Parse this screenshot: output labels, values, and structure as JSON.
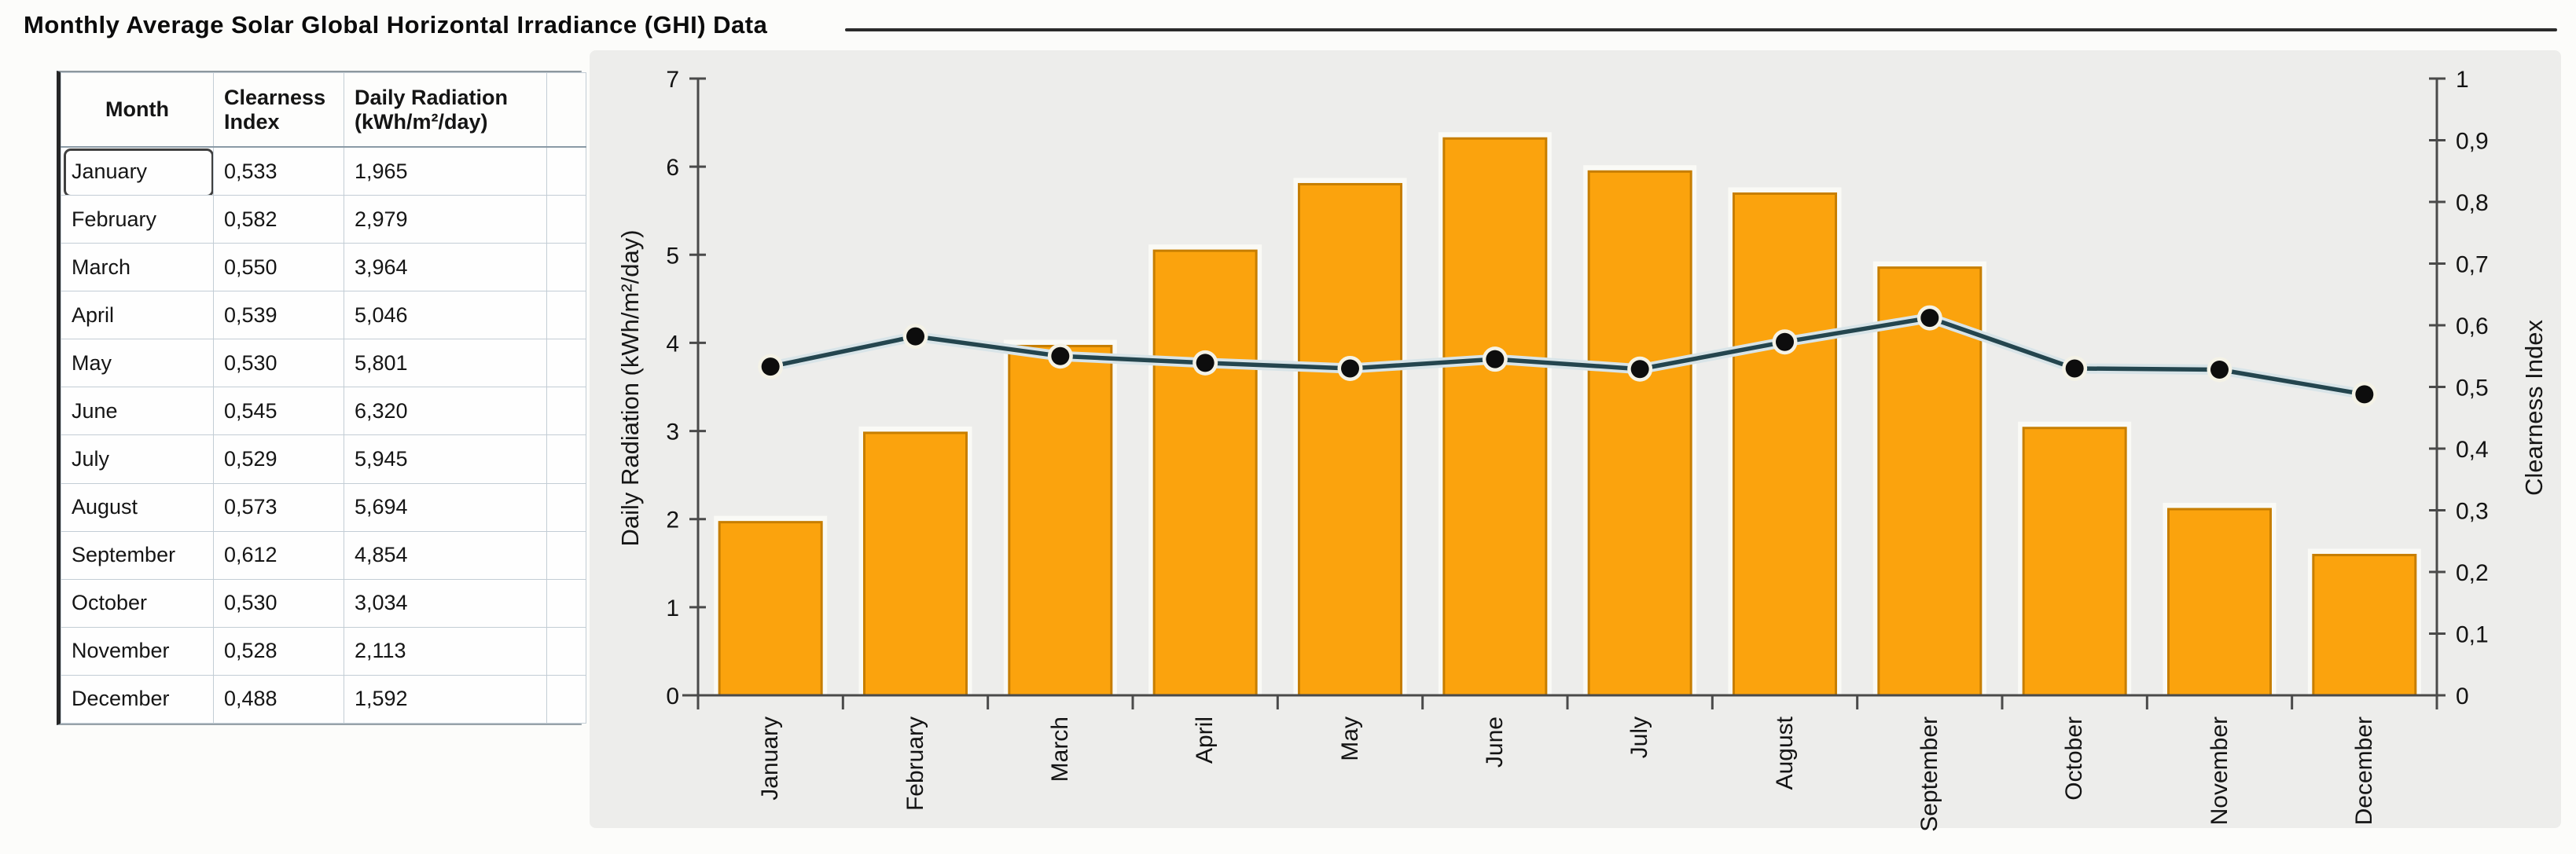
{
  "title": "Monthly Average Solar Global Horizontal Irradiance (GHI) Data",
  "table": {
    "columns": [
      "Month",
      "Clearness Index",
      "Daily Radiation (kWh/m²/day)"
    ],
    "selected_cell": "January",
    "rows": [
      {
        "month": "January",
        "clearness": "0,533",
        "radiation": "1,965"
      },
      {
        "month": "February",
        "clearness": "0,582",
        "radiation": "2,979"
      },
      {
        "month": "March",
        "clearness": "0,550",
        "radiation": "3,964"
      },
      {
        "month": "April",
        "clearness": "0,539",
        "radiation": "5,046"
      },
      {
        "month": "May",
        "clearness": "0,530",
        "radiation": "5,801"
      },
      {
        "month": "June",
        "clearness": "0,545",
        "radiation": "6,320"
      },
      {
        "month": "July",
        "clearness": "0,529",
        "radiation": "5,945"
      },
      {
        "month": "August",
        "clearness": "0,573",
        "radiation": "5,694"
      },
      {
        "month": "September",
        "clearness": "0,612",
        "radiation": "4,854"
      },
      {
        "month": "October",
        "clearness": "0,530",
        "radiation": "3,034"
      },
      {
        "month": "November",
        "clearness": "0,528",
        "radiation": "2,113"
      },
      {
        "month": "December",
        "clearness": "0,488",
        "radiation": "1,592"
      }
    ]
  },
  "chart_data": {
    "type": "bar+line",
    "categories": [
      "January",
      "February",
      "March",
      "April",
      "May",
      "June",
      "July",
      "August",
      "September",
      "October",
      "November",
      "December"
    ],
    "series": [
      {
        "name": "Daily Radiation (kWh/m²/day)",
        "type": "bar",
        "axis": "left",
        "values": [
          1.965,
          2.979,
          3.964,
          5.046,
          5.801,
          6.32,
          5.945,
          5.694,
          4.854,
          3.034,
          2.113,
          1.592
        ]
      },
      {
        "name": "Clearness Index",
        "type": "line",
        "axis": "right",
        "values": [
          0.533,
          0.582,
          0.55,
          0.539,
          0.53,
          0.545,
          0.529,
          0.573,
          0.612,
          0.53,
          0.528,
          0.488
        ]
      }
    ],
    "left_axis": {
      "label": "Daily Radiation (kWh/m²/day)",
      "min": 0,
      "max": 7,
      "step": 1,
      "ticks": [
        "7",
        "6",
        "5",
        "4",
        "3",
        "2",
        "1",
        "0"
      ]
    },
    "right_axis": {
      "label": "Clearness Index",
      "min": 0,
      "max": 1,
      "step": 0.1,
      "ticks": [
        "1",
        "0,9",
        "0,8",
        "0,7",
        "0,6",
        "0,5",
        "0,4",
        "0,3",
        "0,2",
        "0,1",
        "0"
      ]
    },
    "grid": false,
    "legend": false
  },
  "colors": {
    "bar_fill": "#FBA30D",
    "bar_border": "#C77E00",
    "bar_halo": "#FAFAF6",
    "line": "#24454E",
    "line_halo": "#D8E4E8",
    "marker": "#0D0D0D",
    "marker_halo": "#F4F2E6",
    "axis": "#4A4A4A",
    "chart_bg": "#EDEDEB"
  }
}
